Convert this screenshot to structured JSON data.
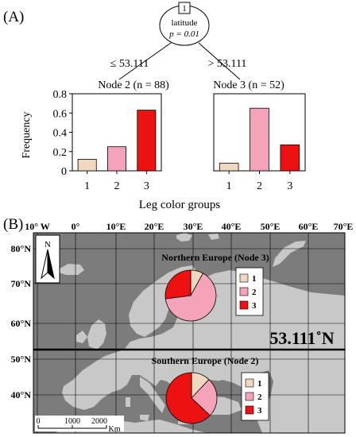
{
  "panels": {
    "a_label": "(A)",
    "b_label": "(B)"
  },
  "tree": {
    "node_id": "1",
    "split_var": "latitude",
    "p_text": "p = 0.01",
    "left_edge": "≤ 53.111",
    "right_edge": "> 53.111"
  },
  "colors": {
    "group1": "#f0d8c0",
    "group2": "#f4a3b9",
    "group3": "#ee1111",
    "land": "#c8c8c8",
    "sea": "#7c7c7c"
  },
  "chart_data": [
    {
      "type": "bar",
      "title": "Node 2 (n = 88)",
      "categories": [
        "1",
        "2",
        "3"
      ],
      "values": [
        0.12,
        0.25,
        0.63
      ],
      "ylabel": "Frequency",
      "xlabel": "",
      "ylim": [
        0,
        0.8
      ],
      "yticks": [
        "0",
        "0.2",
        "0.4",
        "0.6",
        "0.8"
      ],
      "grid": false
    },
    {
      "type": "bar",
      "title": "Node 3 (n = 52)",
      "categories": [
        "1",
        "2",
        "3"
      ],
      "values": [
        0.08,
        0.65,
        0.27
      ],
      "ylabel": "",
      "xlabel": "Leg color groups",
      "ylim": [
        0,
        0.8
      ],
      "yticks": [
        "0",
        "0.2",
        "0.4",
        "0.6",
        "0.8"
      ],
      "grid": false
    },
    {
      "type": "pie",
      "title": "Northern Europe (Node 3)",
      "categories": [
        "1",
        "2",
        "3"
      ],
      "values": [
        0.08,
        0.65,
        0.27
      ]
    },
    {
      "type": "pie",
      "title": "Southern Europe (Node 2)",
      "categories": [
        "1",
        "2",
        "3"
      ],
      "values": [
        0.12,
        0.25,
        0.63
      ]
    }
  ],
  "map": {
    "lon_labels": [
      "10° W",
      "0°",
      "10°E",
      "20°E",
      "30°E",
      "40°E",
      "50°E",
      "60°E",
      "70°E"
    ],
    "lat_labels": [
      "80°N",
      "70°N",
      "60°N",
      "50°N",
      "40°N"
    ],
    "divider_label": "53.111˚N",
    "north": "N",
    "scale_ticks": [
      "0",
      "1000",
      "2000"
    ],
    "scale_unit": "Km"
  }
}
